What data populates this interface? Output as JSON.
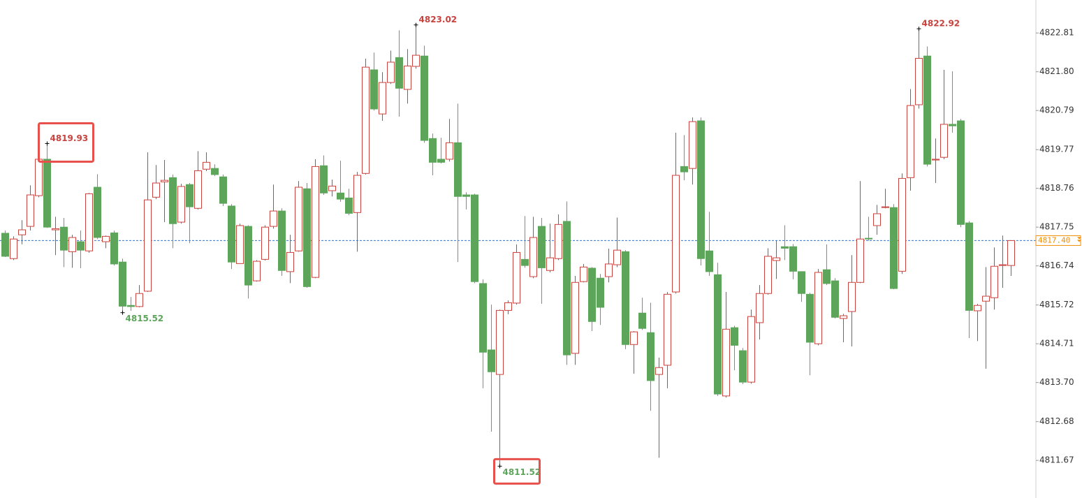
{
  "chart_data": {
    "type": "candlestick",
    "up_color": "#c8423e",
    "down_color": "#5ea55c",
    "series": [
      {
        "open": [
          4817.59,
          4816.93,
          4817.55,
          4817.77,
          4818.57,
          4819.52,
          4817.68,
          4817.75,
          4817.11,
          4817.37,
          4817.13,
          4818.79,
          4817.37,
          4817.6,
          4816.84,
          4815.71,
          4815.68,
          4816.08,
          4818.53,
          4818.93,
          4819.04,
          4817.88,
          4818.86,
          4818.24,
          4819.26,
          4819.28,
          4819.06,
          4818.3,
          4816.8,
          4817.77,
          4816.35,
          4816.91,
          4817.77,
          4818.17,
          4816.59,
          4817.13,
          4818.75,
          4816.44,
          4819.35,
          4818.7,
          4818.64,
          4818.51,
          4818.13,
          4819.15,
          4821.85,
          4820.7,
          4821.52,
          4822.17,
          4821.34,
          4821.94,
          4822.21,
          4820.06,
          4819.52,
          4819.52,
          4819.95,
          4818.59,
          4818.59,
          4816.28,
          4814.55,
          4813.91,
          4815.58,
          4815.77,
          4816.91,
          4816.46,
          4817.77,
          4816.62,
          4816.93,
          4817.9,
          4814.46,
          4816.33,
          4816.68,
          4816.42,
          4816.46,
          4816.77,
          4817.11,
          4814.69,
          4815.51,
          4815.0,
          4813.91,
          4814.15,
          4816.06,
          4819.33,
          4819.28,
          4820.52,
          4817.13,
          4816.51,
          4813.35,
          4815.13,
          4814.53,
          4813.71,
          4815.26,
          4816.02,
          4816.88,
          4817.24,
          4817.24,
          4816.59,
          4816.0,
          4814.71,
          4816.64,
          4816.35,
          4815.37,
          4815.55,
          4816.31,
          4817.46,
          4817.79,
          4818.26,
          4818.26,
          4816.6,
          4819.04,
          4820.94,
          4822.21,
          4819.5,
          4819.57,
          4820.43,
          4820.52,
          4817.86,
          4815.57,
          4815.82,
          4815.91,
          4816.75,
          4816.75
        ],
        "high": [
          4817.66,
          4817.51,
          4817.93,
          4818.84,
          4819.57,
          4819.93,
          4818.02,
          4817.99,
          4817.55,
          4817.66,
          4818.64,
          4819.13,
          4817.53,
          4817.66,
          4816.93,
          4815.93,
          4816.24,
          4819.7,
          4819.37,
          4819.5,
          4819.12,
          4818.88,
          4818.9,
          4819.73,
          4819.7,
          4819.39,
          4819.12,
          4818.35,
          4817.84,
          4817.8,
          4816.89,
          4817.8,
          4818.86,
          4818.24,
          4817.55,
          4818.95,
          4818.9,
          4819.52,
          4819.62,
          4818.99,
          4819.48,
          4818.75,
          4819.19,
          4822.14,
          4822.3,
          4821.79,
          4822.35,
          4822.88,
          4822.39,
          4823.02,
          4822.48,
          4820.19,
          4820.08,
          4820.57,
          4820.97,
          4818.66,
          4818.62,
          4816.39,
          4815.73,
          4815.6,
          4815.84,
          4817.3,
          4818.04,
          4818.02,
          4817.99,
          4817.84,
          4818.08,
          4818.42,
          4816.48,
          4816.79,
          4816.71,
          4816.53,
          4817.19,
          4818.0,
          4817.15,
          4815.04,
          4815.91,
          4815.78,
          4814.35,
          4816.06,
          4820.21,
          4820.15,
          4820.61,
          4820.61,
          4818.15,
          4816.82,
          4816.06,
          4815.18,
          4814.6,
          4815.6,
          4816.24,
          4817.2,
          4817.4,
          4817.8,
          4817.31,
          4816.6,
          4816.04,
          4816.66,
          4817.3,
          4816.42,
          4815.49,
          4817.02,
          4818.95,
          4818.02,
          4818.33,
          4818.75,
          4818.35,
          4819.15,
          4821.35,
          4822.92,
          4822.46,
          4820.06,
          4821.85,
          4821.81,
          4820.57,
          4817.91,
          4815.75,
          4816.71,
          4817.22,
          4817.53,
          4817.4
        ],
        "low": [
          4816.97,
          4816.89,
          4817.3,
          4817.66,
          4818.53,
          4817.73,
          4817.02,
          4816.71,
          4816.69,
          4816.68,
          4817.08,
          4817.44,
          4817.2,
          4816.75,
          4815.52,
          4815.57,
          4815.66,
          4816.06,
          4818.48,
          4817.88,
          4817.2,
          4817.84,
          4817.33,
          4818.21,
          4819.21,
          4819.08,
          4818.3,
          4816.66,
          4816.79,
          4815.89,
          4816.33,
          4816.88,
          4817.71,
          4816.48,
          4816.29,
          4817.11,
          4816.17,
          4816.42,
          4818.59,
          4818.55,
          4818.41,
          4818.06,
          4817.11,
          4819.12,
          4820.79,
          4820.52,
          4821.48,
          4820.63,
          4820.97,
          4821.88,
          4819.95,
          4819.1,
          4819.41,
          4819.46,
          4816.84,
          4818.21,
          4816.29,
          4813.55,
          4812.42,
          4811.52,
          4815.48,
          4815.73,
          4816.69,
          4816.42,
          4815.75,
          4816.57,
          4816.89,
          4814.16,
          4814.16,
          4816.31,
          4815.04,
          4815.2,
          4816.31,
          4816.71,
          4814.57,
          4813.93,
          4815.07,
          4812.96,
          4811.74,
          4813.55,
          4816.02,
          4818.97,
          4818.86,
          4816.75,
          4816.48,
          4813.35,
          4813.31,
          4814.02,
          4813.66,
          4813.67,
          4814.82,
          4815.99,
          4816.4,
          4816.89,
          4816.39,
          4815.8,
          4813.89,
          4814.67,
          4816.24,
          4815.37,
          4814.75,
          4814.64,
          4816.29,
          4817.4,
          4817.55,
          4818.24,
          4816.13,
          4816.53,
          4818.7,
          4820.84,
          4819.33,
          4818.9,
          4819.52,
          4820.21,
          4817.75,
          4814.86,
          4814.78,
          4814.06,
          4815.6,
          4816.17,
          4816.48
        ],
        "close": [
          4816.99,
          4817.44,
          4817.68,
          4818.59,
          4819.52,
          4817.75,
          4817.71,
          4817.15,
          4817.48,
          4817.15,
          4818.62,
          4817.48,
          4817.51,
          4816.79,
          4815.69,
          4815.68,
          4816.02,
          4818.46,
          4818.9,
          4818.97,
          4817.84,
          4818.81,
          4818.28,
          4819.22,
          4819.44,
          4819.12,
          4818.37,
          4816.84,
          4817.79,
          4816.24,
          4816.86,
          4817.75,
          4818.17,
          4816.62,
          4817.09,
          4818.79,
          4816.2,
          4819.33,
          4818.64,
          4818.82,
          4818.48,
          4818.11,
          4819.1,
          4821.92,
          4820.83,
          4821.52,
          4822.05,
          4821.37,
          4821.95,
          4822.23,
          4820.01,
          4819.44,
          4819.44,
          4819.95,
          4818.55,
          4818.55,
          4816.33,
          4814.49,
          4813.98,
          4815.58,
          4815.78,
          4817.09,
          4816.75,
          4817.48,
          4816.69,
          4816.95,
          4817.82,
          4814.42,
          4816.31,
          4816.71,
          4815.29,
          4815.66,
          4816.79,
          4817.15,
          4814.69,
          4815.02,
          4815.11,
          4813.75,
          4814.09,
          4816.0,
          4819.1,
          4819.19,
          4820.5,
          4816.93,
          4816.59,
          4813.4,
          4815.09,
          4814.67,
          4813.71,
          4815.42,
          4816.02,
          4816.99,
          4816.95,
          4817.2,
          4816.6,
          4816.02,
          4814.75,
          4816.57,
          4816.28,
          4815.4,
          4815.44,
          4816.31,
          4817.44,
          4817.44,
          4818.1,
          4818.28,
          4816.15,
          4819.02,
          4820.92,
          4822.15,
          4819.39,
          4819.52,
          4820.43,
          4820.39,
          4817.82,
          4815.58,
          4815.71,
          4815.95,
          4816.73,
          4816.77,
          4817.4
        ]
      }
    ],
    "ylim": [
      4810.69,
      4823.67
    ],
    "yticks": [
      4822.81,
      {
        "value": 4821.8,
        "label": "4821.80"
      },
      4820.79,
      4819.77,
      4818.76,
      4817.75,
      4816.74,
      4815.72,
      4814.71,
      {
        "value": 4813.7,
        "label": "4813.70"
      },
      4812.68,
      4811.67
    ],
    "last_price": {
      "value": 4817.4,
      "label": "4817.40",
      "line_color": "#2f74d0",
      "label_color": "#f08c00"
    },
    "annotations": [
      {
        "value": 4819.93,
        "candle": 5,
        "kind": "high",
        "boxed": true
      },
      {
        "value": 4815.52,
        "candle": 14,
        "kind": "low",
        "boxed": false
      },
      {
        "value": 4823.02,
        "candle": 49,
        "kind": "high",
        "boxed": false
      },
      {
        "value": 4811.52,
        "candle": 59,
        "kind": "low",
        "boxed": true
      },
      {
        "value": 4822.92,
        "candle": 109,
        "kind": "high",
        "boxed": false
      }
    ],
    "box_color": "#e8504c"
  }
}
